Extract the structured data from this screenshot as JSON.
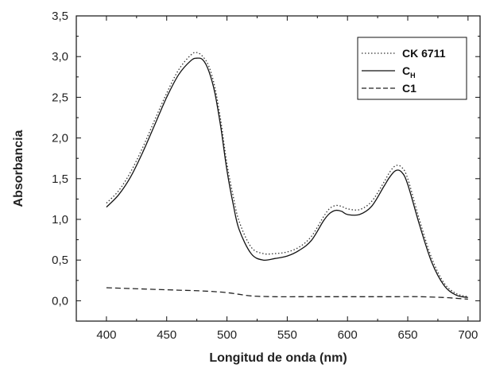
{
  "chart_data": {
    "type": "line",
    "title": "",
    "xlabel": "Longitud de onda (nm)",
    "ylabel": "Absorbancia",
    "xlim": [
      375,
      710
    ],
    "ylim": [
      -0.25,
      3.5
    ],
    "x_ticks": [
      400,
      450,
      500,
      550,
      600,
      650,
      700
    ],
    "x_tick_labels": [
      "400",
      "450",
      "500",
      "550",
      "600",
      "650",
      "700"
    ],
    "y_ticks": [
      0.0,
      0.5,
      1.0,
      1.5,
      2.0,
      2.5,
      3.0,
      3.5
    ],
    "y_tick_labels": [
      "0,0",
      "0,5",
      "1,0",
      "1,5",
      "2,0",
      "2,5",
      "3,0",
      "3,5"
    ],
    "legend_position": "top-right",
    "series": [
      {
        "name": "CK 6711",
        "style": "dotted",
        "x": [
          400,
          410,
          420,
          430,
          440,
          450,
          460,
          470,
          475,
          480,
          485,
          490,
          495,
          500,
          505,
          510,
          520,
          530,
          540,
          550,
          560,
          570,
          580,
          585,
          590,
          595,
          600,
          610,
          620,
          630,
          635,
          640,
          645,
          650,
          660,
          670,
          680,
          690,
          700
        ],
        "values": [
          1.2,
          1.35,
          1.58,
          1.88,
          2.22,
          2.55,
          2.84,
          3.02,
          3.05,
          3.0,
          2.88,
          2.62,
          2.2,
          1.68,
          1.3,
          0.98,
          0.66,
          0.58,
          0.58,
          0.6,
          0.66,
          0.79,
          1.03,
          1.13,
          1.17,
          1.16,
          1.13,
          1.12,
          1.22,
          1.45,
          1.58,
          1.66,
          1.64,
          1.5,
          0.98,
          0.52,
          0.22,
          0.09,
          0.05
        ]
      },
      {
        "name": "C",
        "name_subscript": "H",
        "style": "solid",
        "x": [
          400,
          410,
          420,
          430,
          440,
          450,
          460,
          470,
          475,
          480,
          485,
          490,
          495,
          500,
          505,
          510,
          520,
          530,
          540,
          550,
          560,
          570,
          580,
          585,
          590,
          595,
          600,
          610,
          620,
          630,
          635,
          640,
          645,
          650,
          660,
          670,
          680,
          690,
          700
        ],
        "values": [
          1.15,
          1.3,
          1.52,
          1.82,
          2.16,
          2.5,
          2.78,
          2.95,
          2.98,
          2.96,
          2.82,
          2.55,
          2.12,
          1.6,
          1.2,
          0.88,
          0.58,
          0.5,
          0.52,
          0.55,
          0.62,
          0.74,
          0.98,
          1.07,
          1.11,
          1.1,
          1.06,
          1.06,
          1.16,
          1.4,
          1.52,
          1.6,
          1.58,
          1.43,
          0.92,
          0.47,
          0.19,
          0.07,
          0.04
        ]
      },
      {
        "name": "C1",
        "style": "dashed",
        "x": [
          400,
          420,
          440,
          460,
          480,
          500,
          520,
          540,
          560,
          580,
          600,
          620,
          640,
          660,
          680,
          690,
          700
        ],
        "values": [
          0.16,
          0.15,
          0.14,
          0.13,
          0.12,
          0.1,
          0.06,
          0.05,
          0.05,
          0.05,
          0.05,
          0.05,
          0.05,
          0.05,
          0.04,
          0.03,
          0.02
        ]
      }
    ]
  }
}
